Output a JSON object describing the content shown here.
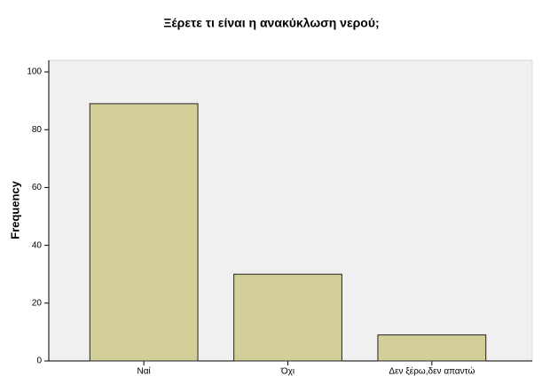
{
  "chart_data": {
    "type": "bar",
    "title": "Ξέρετε τι είναι η ανακύκλωση νερού;",
    "y_label": "Frequency",
    "categories": [
      "Ναί",
      "Όχι",
      "Δεν ξέρω,δεν απαντώ"
    ],
    "values": [
      89,
      30,
      9
    ],
    "color": "#d3cf99",
    "ylim": [
      0,
      104
    ],
    "yticks": [
      0,
      20,
      40,
      60,
      80,
      100
    ],
    "grid": false
  }
}
